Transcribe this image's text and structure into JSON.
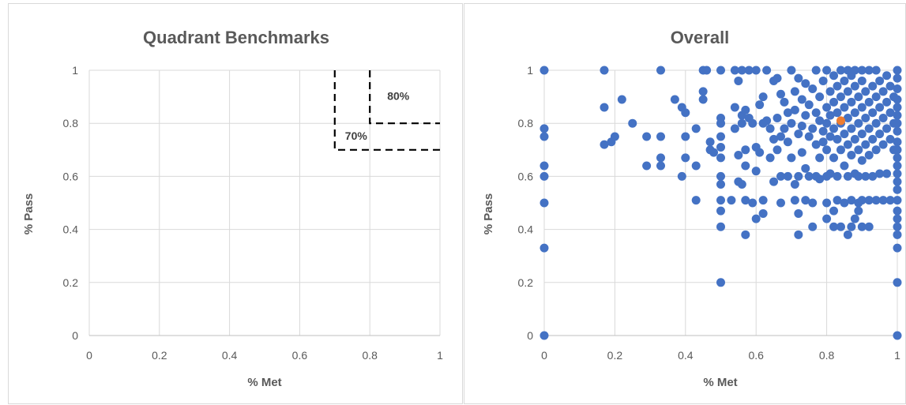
{
  "chart_data": [
    {
      "type": "line",
      "title": "Quadrant Benchmarks",
      "xlabel": "% Met",
      "ylabel": "% Pass",
      "xlim": [
        0,
        1
      ],
      "ylim": [
        0,
        1
      ],
      "xticks": [
        "0",
        "0.2",
        "0.4",
        "0.6",
        "0.8",
        "1"
      ],
      "yticks": [
        "0",
        "0.2",
        "0.4",
        "0.6",
        "0.8",
        "1"
      ],
      "grid": true,
      "series": [
        {
          "label": "80%",
          "line_style": "dashed",
          "color": "#000000",
          "points": [
            [
              0.8,
              1.0
            ],
            [
              0.8,
              0.8
            ],
            [
              1.0,
              0.8
            ]
          ]
        },
        {
          "label": "70%",
          "line_style": "dashed",
          "color": "#000000",
          "points": [
            [
              0.7,
              1.0
            ],
            [
              0.7,
              0.7
            ],
            [
              1.0,
              0.7
            ]
          ]
        }
      ]
    },
    {
      "type": "scatter",
      "title": "Overall",
      "xlabel": "% Met",
      "ylabel": "% Pass",
      "xlim": [
        0,
        1
      ],
      "ylim": [
        0,
        1
      ],
      "xticks": [
        "0",
        "0.2",
        "0.4",
        "0.6",
        "0.8",
        "1"
      ],
      "yticks": [
        "0",
        "0.2",
        "0.4",
        "0.6",
        "0.8",
        "1"
      ],
      "grid": true,
      "series": [
        {
          "color": "#4472c4",
          "points": [
            [
              0,
              1
            ],
            [
              0,
              0.78
            ],
            [
              0,
              0.75
            ],
            [
              0,
              0.64
            ],
            [
              0,
              0.6
            ],
            [
              0,
              0.5
            ],
            [
              0,
              0.33
            ],
            [
              0,
              0
            ],
            [
              0.17,
              1
            ],
            [
              0.17,
              0.86
            ],
            [
              0.17,
              0.72
            ],
            [
              0.19,
              0.73
            ],
            [
              0.2,
              0.75
            ],
            [
              0.22,
              0.89
            ],
            [
              0.25,
              0.8
            ],
            [
              0.29,
              0.75
            ],
            [
              0.29,
              0.64
            ],
            [
              0.33,
              1
            ],
            [
              0.33,
              0.75
            ],
            [
              0.33,
              0.67
            ],
            [
              0.33,
              0.64
            ],
            [
              0.37,
              0.89
            ],
            [
              0.39,
              0.86
            ],
            [
              0.39,
              0.6
            ],
            [
              0.4,
              0.84
            ],
            [
              0.4,
              0.75
            ],
            [
              0.4,
              0.67
            ],
            [
              0.43,
              0.78
            ],
            [
              0.43,
              0.64
            ],
            [
              0.43,
              0.51
            ],
            [
              0.45,
              1
            ],
            [
              0.45,
              0.92
            ],
            [
              0.45,
              0.89
            ],
            [
              0.46,
              1
            ],
            [
              0.47,
              0.73
            ],
            [
              0.47,
              0.7
            ],
            [
              0.48,
              0.69
            ],
            [
              0.5,
              1
            ],
            [
              0.5,
              0.82
            ],
            [
              0.5,
              0.8
            ],
            [
              0.5,
              0.75
            ],
            [
              0.5,
              0.71
            ],
            [
              0.5,
              0.67
            ],
            [
              0.5,
              0.6
            ],
            [
              0.5,
              0.57
            ],
            [
              0.5,
              0.51
            ],
            [
              0.5,
              0.47
            ],
            [
              0.5,
              0.41
            ],
            [
              0.5,
              0.2
            ],
            [
              0.53,
              0.51
            ],
            [
              0.54,
              1
            ],
            [
              0.54,
              0.86
            ],
            [
              0.54,
              0.78
            ],
            [
              0.55,
              0.96
            ],
            [
              0.55,
              0.68
            ],
            [
              0.55,
              0.58
            ],
            [
              0.56,
              1
            ],
            [
              0.56,
              0.83
            ],
            [
              0.56,
              0.8
            ],
            [
              0.56,
              0.57
            ],
            [
              0.57,
              0.85
            ],
            [
              0.57,
              0.7
            ],
            [
              0.57,
              0.64
            ],
            [
              0.57,
              0.51
            ],
            [
              0.57,
              0.38
            ],
            [
              0.58,
              1
            ],
            [
              0.58,
              0.82
            ],
            [
              0.59,
              0.8
            ],
            [
              0.59,
              0.5
            ],
            [
              0.6,
              1
            ],
            [
              0.6,
              0.71
            ],
            [
              0.6,
              0.62
            ],
            [
              0.6,
              0.44
            ],
            [
              0.61,
              0.87
            ],
            [
              0.61,
              0.69
            ],
            [
              0.62,
              0.9
            ],
            [
              0.62,
              0.8
            ],
            [
              0.62,
              0.51
            ],
            [
              0.62,
              0.46
            ],
            [
              0.63,
              1
            ],
            [
              0.63,
              0.81
            ],
            [
              0.64,
              0.78
            ],
            [
              0.64,
              0.67
            ],
            [
              0.65,
              0.96
            ],
            [
              0.65,
              0.74
            ],
            [
              0.65,
              0.58
            ],
            [
              0.66,
              0.97
            ],
            [
              0.66,
              0.82
            ],
            [
              0.66,
              0.7
            ],
            [
              0.67,
              0.91
            ],
            [
              0.67,
              0.75
            ],
            [
              0.67,
              0.6
            ],
            [
              0.67,
              0.5
            ],
            [
              0.68,
              0.88
            ],
            [
              0.68,
              0.78
            ],
            [
              0.69,
              0.84
            ],
            [
              0.69,
              0.73
            ],
            [
              0.69,
              0.6
            ],
            [
              0.7,
              1
            ],
            [
              0.7,
              0.8
            ],
            [
              0.7,
              0.67
            ],
            [
              0.71,
              0.92
            ],
            [
              0.71,
              0.85
            ],
            [
              0.71,
              0.57
            ],
            [
              0.71,
              0.51
            ],
            [
              0.72,
              0.97
            ],
            [
              0.72,
              0.76
            ],
            [
              0.72,
              0.6
            ],
            [
              0.72,
              0.46
            ],
            [
              0.72,
              0.38
            ],
            [
              0.73,
              0.89
            ],
            [
              0.73,
              0.79
            ],
            [
              0.73,
              0.69
            ],
            [
              0.74,
              0.95
            ],
            [
              0.74,
              0.83
            ],
            [
              0.74,
              0.63
            ],
            [
              0.74,
              0.51
            ],
            [
              0.75,
              0.87
            ],
            [
              0.75,
              0.75
            ],
            [
              0.75,
              0.6
            ],
            [
              0.76,
              0.93
            ],
            [
              0.76,
              0.78
            ],
            [
              0.76,
              0.5
            ],
            [
              0.76,
              0.41
            ],
            [
              0.77,
              1
            ],
            [
              0.77,
              0.84
            ],
            [
              0.77,
              0.72
            ],
            [
              0.77,
              0.6
            ],
            [
              0.78,
              0.9
            ],
            [
              0.78,
              0.81
            ],
            [
              0.78,
              0.67
            ],
            [
              0.78,
              0.59
            ],
            [
              0.79,
              0.96
            ],
            [
              0.79,
              0.77
            ],
            [
              0.79,
              0.73
            ],
            [
              0.8,
              1
            ],
            [
              0.8,
              0.86
            ],
            [
              0.8,
              0.8
            ],
            [
              0.8,
              0.7
            ],
            [
              0.8,
              0.6
            ],
            [
              0.8,
              0.5
            ],
            [
              0.8,
              0.44
            ],
            [
              0.81,
              0.92
            ],
            [
              0.81,
              0.83
            ],
            [
              0.81,
              0.75
            ],
            [
              0.81,
              0.61
            ],
            [
              0.82,
              0.98
            ],
            [
              0.82,
              0.88
            ],
            [
              0.82,
              0.78
            ],
            [
              0.82,
              0.67
            ],
            [
              0.82,
              0.47
            ],
            [
              0.82,
              0.41
            ],
            [
              0.83,
              0.94
            ],
            [
              0.83,
              0.84
            ],
            [
              0.83,
              0.74
            ],
            [
              0.83,
              0.6
            ],
            [
              0.83,
              0.51
            ],
            [
              0.84,
              1
            ],
            [
              0.84,
              0.9
            ],
            [
              0.84,
              0.8
            ],
            [
              0.84,
              0.7
            ],
            [
              0.84,
              0.41
            ],
            [
              0.85,
              0.96
            ],
            [
              0.85,
              0.86
            ],
            [
              0.85,
              0.76
            ],
            [
              0.85,
              0.64
            ],
            [
              0.85,
              0.5
            ],
            [
              0.86,
              1
            ],
            [
              0.86,
              0.92
            ],
            [
              0.86,
              0.82
            ],
            [
              0.86,
              0.72
            ],
            [
              0.86,
              0.6
            ],
            [
              0.86,
              0.38
            ],
            [
              0.87,
              0.98
            ],
            [
              0.87,
              0.88
            ],
            [
              0.87,
              0.78
            ],
            [
              0.87,
              0.68
            ],
            [
              0.87,
              0.51
            ],
            [
              0.87,
              0.41
            ],
            [
              0.88,
              1
            ],
            [
              0.88,
              0.94
            ],
            [
              0.88,
              0.84
            ],
            [
              0.88,
              0.74
            ],
            [
              0.88,
              0.61
            ],
            [
              0.88,
              0.44
            ],
            [
              0.89,
              0.9
            ],
            [
              0.89,
              0.8
            ],
            [
              0.89,
              0.7
            ],
            [
              0.89,
              0.6
            ],
            [
              0.89,
              0.5
            ],
            [
              0.89,
              0.47
            ],
            [
              0.9,
              1
            ],
            [
              0.9,
              0.96
            ],
            [
              0.9,
              0.86
            ],
            [
              0.9,
              0.76
            ],
            [
              0.9,
              0.66
            ],
            [
              0.9,
              0.51
            ],
            [
              0.9,
              0.41
            ],
            [
              0.91,
              0.92
            ],
            [
              0.91,
              0.82
            ],
            [
              0.91,
              0.72
            ],
            [
              0.91,
              0.6
            ],
            [
              0.92,
              1
            ],
            [
              0.92,
              0.88
            ],
            [
              0.92,
              0.78
            ],
            [
              0.92,
              0.68
            ],
            [
              0.92,
              0.51
            ],
            [
              0.92,
              0.41
            ],
            [
              0.93,
              0.94
            ],
            [
              0.93,
              0.84
            ],
            [
              0.93,
              0.74
            ],
            [
              0.93,
              0.6
            ],
            [
              0.94,
              1
            ],
            [
              0.94,
              0.9
            ],
            [
              0.94,
              0.8
            ],
            [
              0.94,
              0.7
            ],
            [
              0.94,
              0.51
            ],
            [
              0.95,
              0.96
            ],
            [
              0.95,
              0.86
            ],
            [
              0.95,
              0.76
            ],
            [
              0.95,
              0.61
            ],
            [
              0.96,
              0.92
            ],
            [
              0.96,
              0.82
            ],
            [
              0.96,
              0.72
            ],
            [
              0.96,
              0.51
            ],
            [
              0.97,
              0.98
            ],
            [
              0.97,
              0.88
            ],
            [
              0.97,
              0.78
            ],
            [
              0.97,
              0.61
            ],
            [
              0.98,
              0.94
            ],
            [
              0.98,
              0.84
            ],
            [
              0.98,
              0.74
            ],
            [
              0.98,
              0.51
            ],
            [
              0.99,
              0.9
            ],
            [
              0.99,
              0.8
            ],
            [
              0.99,
              0.7
            ],
            [
              1,
              1
            ],
            [
              1,
              0.97
            ],
            [
              1,
              0.93
            ],
            [
              1,
              0.89
            ],
            [
              1,
              0.86
            ],
            [
              1,
              0.83
            ],
            [
              1,
              0.8
            ],
            [
              1,
              0.77
            ],
            [
              1,
              0.73
            ],
            [
              1,
              0.7
            ],
            [
              1,
              0.67
            ],
            [
              1,
              0.64
            ],
            [
              1,
              0.61
            ],
            [
              1,
              0.58
            ],
            [
              1,
              0.55
            ],
            [
              1,
              0.51
            ],
            [
              1,
              0.47
            ],
            [
              1,
              0.44
            ],
            [
              1,
              0.41
            ],
            [
              1,
              0.38
            ],
            [
              1,
              0.33
            ],
            [
              1,
              0.2
            ],
            [
              1,
              0
            ]
          ]
        },
        {
          "color": "#ed7d31",
          "points": [
            [
              0.84,
              0.81
            ]
          ]
        }
      ]
    }
  ]
}
